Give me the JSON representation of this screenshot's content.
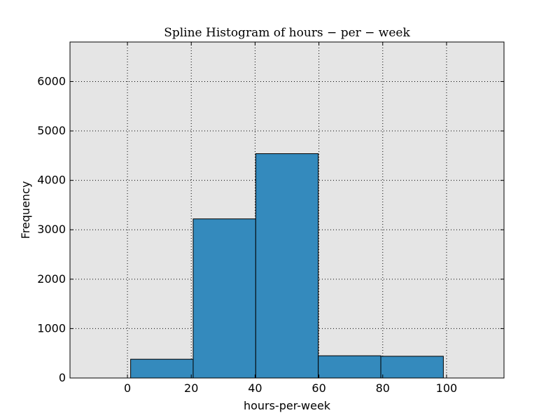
{
  "chart_data": {
    "type": "bar",
    "title": "Spline Histogram of hours − per − week",
    "xlabel": "hours-per-week",
    "ylabel": "Frequency",
    "bins": [
      {
        "start": 1,
        "end": 20.6,
        "value": 380
      },
      {
        "start": 20.6,
        "end": 40.2,
        "value": 3220
      },
      {
        "start": 40.2,
        "end": 59.8,
        "value": 4540
      },
      {
        "start": 59.8,
        "end": 79.4,
        "value": 450
      },
      {
        "start": 79.4,
        "end": 99,
        "value": 440
      }
    ],
    "xlim": [
      -18,
      118
    ],
    "ylim": [
      0,
      6800
    ],
    "xticks": [
      0,
      20,
      40,
      60,
      80,
      100
    ],
    "yticks": [
      0,
      1000,
      2000,
      3000,
      4000,
      5000,
      6000
    ],
    "grid": true,
    "bar_color": "#348abd",
    "background_color": "#e5e5e5"
  }
}
